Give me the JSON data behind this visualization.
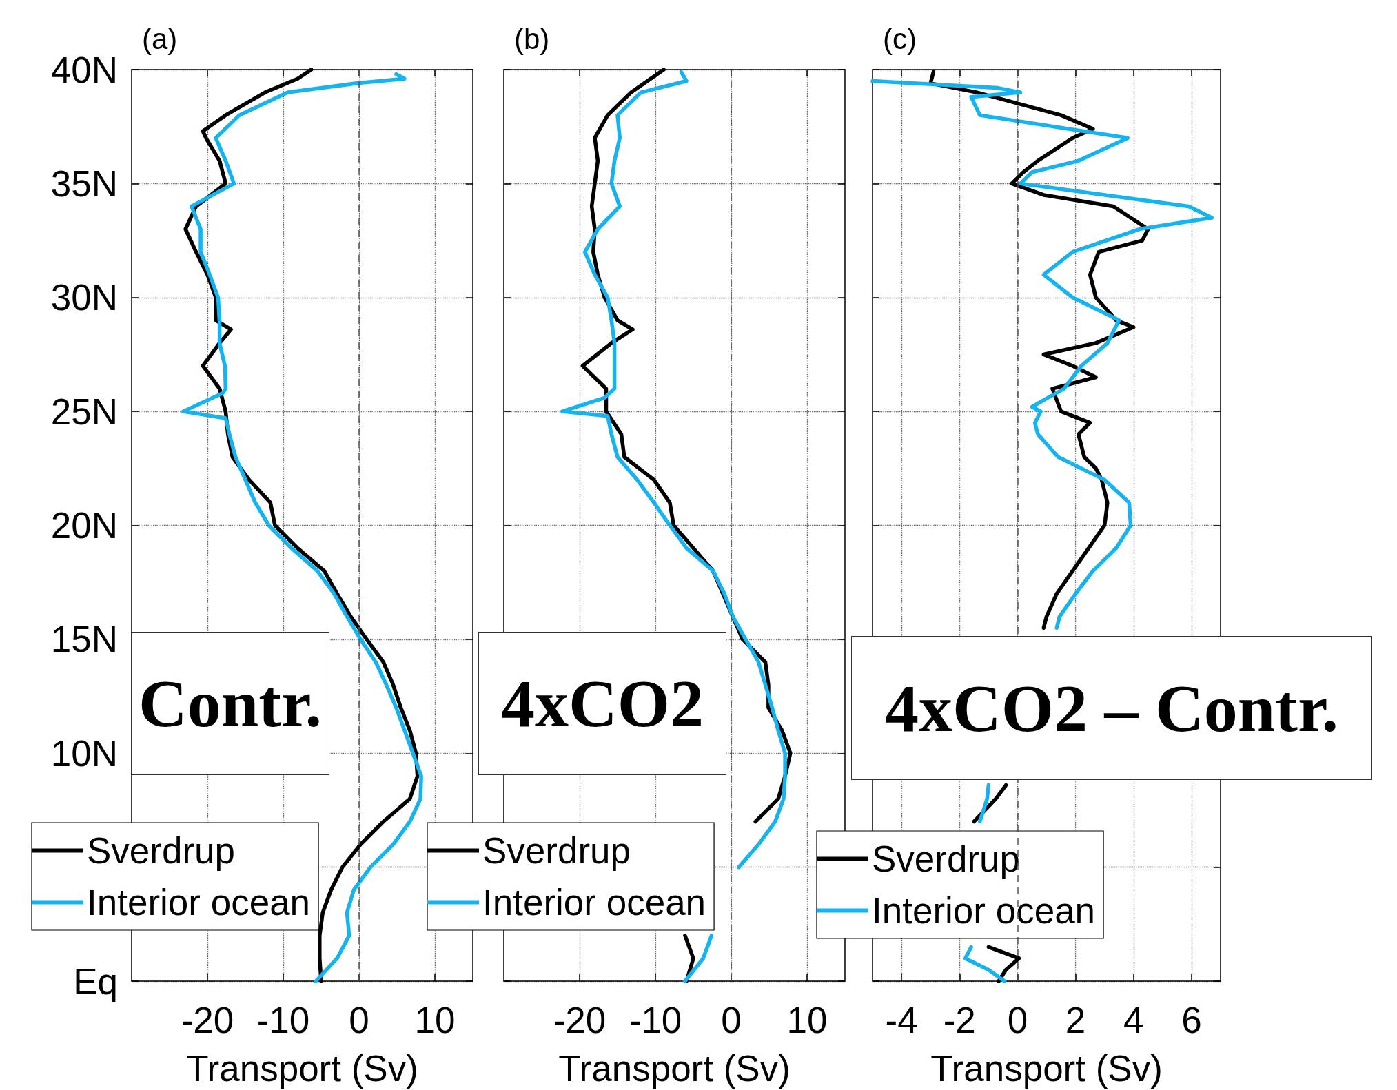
{
  "chart_data": [
    {
      "type": "line",
      "title": "(a)",
      "xlabel": "Transport (Sv)",
      "annotations": [
        "Contr."
      ],
      "xlim": [
        -30,
        15
      ],
      "xticks": [
        -20,
        -10,
        0,
        10
      ],
      "ylim": [
        0,
        40
      ],
      "yticks": [
        {
          "value": 0,
          "label": "Eq"
        },
        {
          "value": 5,
          "label": null
        },
        {
          "value": 10,
          "label": "10N"
        },
        {
          "value": 15,
          "label": "15N"
        },
        {
          "value": 20,
          "label": "20N"
        },
        {
          "value": 25,
          "label": "25N"
        },
        {
          "value": 30,
          "label": "30N"
        },
        {
          "value": 35,
          "label": "35N"
        },
        {
          "value": 40,
          "label": "40N"
        }
      ],
      "grid": true,
      "legend": "bottom left",
      "marker": "none",
      "ref_lines": [
        {
          "axis": "x",
          "value": 0,
          "color": "#555555",
          "line_style": "dashed"
        }
      ],
      "series": [
        {
          "name": "Sverdrup",
          "color": "#000000",
          "x": [
            -5.0,
            -5.2,
            -5.2,
            -4.8,
            -3.7,
            -2.2,
            0.2,
            3.2,
            6.7,
            7.7,
            7.5,
            6.7,
            5.5,
            4.5,
            3.2,
            1.0,
            -1.1,
            -2.9,
            -4.6,
            -8.1,
            -11.1,
            -11.7,
            -14.5,
            -16.7,
            -17.3,
            -17.6,
            -18.4,
            -20.6,
            -18.4,
            -16.9,
            -18.9,
            -18.9,
            -20,
            -21.5,
            -22.9,
            -21.5,
            -17.6,
            -18.4,
            -20.2,
            -20.6,
            -17.6,
            -12.4,
            -8.1,
            -6.3
          ],
          "values": [
            0,
            1,
            2,
            3,
            4,
            5,
            6,
            7,
            8,
            9,
            10,
            11,
            12,
            13,
            14,
            15,
            16,
            17,
            18,
            19,
            20,
            21,
            22,
            23,
            24,
            25,
            26,
            27,
            28,
            28.6,
            29,
            30,
            31,
            32,
            33,
            34,
            35,
            36,
            37,
            37.3,
            38,
            39,
            39.6,
            40
          ]
        },
        {
          "name": "Interior ocean",
          "color": "#15b3ef",
          "x": [
            -5.7,
            -2.9,
            -1.3,
            -1.6,
            -0.7,
            1.5,
            4.5,
            6.7,
            8.1,
            8.2,
            7.1,
            6.0,
            4.9,
            3.6,
            2.2,
            0.2,
            -1.6,
            -3.3,
            -5.5,
            -8.9,
            -11.9,
            -13.7,
            -15,
            -16.3,
            -17.1,
            -17.6,
            -23.2,
            -18,
            -17.6,
            -17.7,
            -18.4,
            -18.4,
            -18.6,
            -19.7,
            -20.9,
            -20.9,
            -22.1,
            -16.5,
            -17.6,
            -18.9,
            -15.8,
            -9.4,
            -0.3,
            6.0,
            4.9
          ],
          "values": [
            0,
            1,
            2,
            3,
            4,
            5,
            6,
            7,
            8,
            9,
            10,
            11,
            12,
            13,
            14,
            15,
            16,
            17,
            18,
            19,
            20,
            21,
            22,
            23,
            24,
            24.7,
            25,
            25.8,
            26,
            27,
            28,
            29,
            30,
            31,
            32,
            33,
            34,
            35,
            36,
            37,
            38,
            39,
            39.4,
            39.6,
            39.8
          ]
        }
      ]
    },
    {
      "type": "line",
      "title": "(b)",
      "xlabel": "Transport (Sv)",
      "annotations": [
        "4xCO2"
      ],
      "xlim": [
        -30,
        15
      ],
      "xticks": [
        -20,
        -10,
        0,
        10
      ],
      "ylim": [
        0,
        40
      ],
      "yticks": [
        0,
        5,
        10,
        15,
        20,
        25,
        30,
        35,
        40
      ],
      "tick_labels": "x",
      "grid": true,
      "legend": "bottom left",
      "marker": "none",
      "ref_lines": [
        {
          "axis": "x",
          "value": 0,
          "color": "#555555",
          "line_style": "dashed"
        }
      ],
      "series": [
        {
          "name": "Sverdrup",
          "color": "#000000",
          "x": [
            -5.9,
            -5.0,
            -6.1,
            null,
            3.2,
            6.2,
            7.1,
            7.8,
            6.7,
            4.9,
            4.9,
            4.5,
            1.5,
            0.2,
            -1.1,
            -2.4,
            -5.0,
            -7.6,
            -8.1,
            -10.2,
            -14.1,
            -14.5,
            -16.5,
            -16.5,
            -19.6,
            -15.8,
            -13,
            -15,
            -16.7,
            -17.6,
            -18.2,
            -18,
            -18.4,
            -18,
            -17.6,
            -18,
            -16.3,
            -13.2,
            -8.9
          ],
          "values": [
            0,
            1,
            2,
            null,
            7,
            8,
            9,
            10,
            11,
            12,
            13,
            14,
            15,
            16,
            17,
            18,
            19,
            20,
            21,
            22,
            23,
            24,
            25,
            26,
            27,
            28,
            28.6,
            29,
            30,
            31,
            32,
            33,
            34,
            35,
            36,
            37,
            38,
            39,
            40
          ]
        },
        {
          "name": "Interior ocean",
          "color": "#15b3ef",
          "x": [
            -6.1,
            -3.7,
            -2.6,
            null,
            1.0,
            3.6,
            5.8,
            6.9,
            7.1,
            7.1,
            6.2,
            5.4,
            4.5,
            3.6,
            1.9,
            0.2,
            -0.9,
            -2.4,
            -5.9,
            -8.1,
            -10.2,
            -12.4,
            -15,
            -15.8,
            -16.3,
            -22.3,
            -16.7,
            -15.4,
            -15.4,
            -15.4,
            -15.8,
            -16.3,
            -18,
            -19.3,
            -17.6,
            -14.7,
            -15.8,
            -15.4,
            -14.7,
            -15,
            -11.9,
            -5.9,
            -6.6
          ],
          "values": [
            0,
            1,
            2,
            null,
            5,
            6,
            7,
            8,
            9,
            10,
            11,
            12,
            13,
            14,
            15,
            16,
            17,
            18,
            19,
            20,
            21,
            22,
            23,
            24,
            24.8,
            25,
            25.6,
            26,
            27,
            28,
            29,
            30,
            31,
            32,
            33,
            34,
            35,
            36,
            37,
            38,
            39,
            39.5,
            39.9
          ]
        }
      ]
    },
    {
      "type": "line",
      "title": "(c)",
      "xlabel": "Transport (Sv)",
      "annotations": [
        "4xCO2 – Contr."
      ],
      "xlim": [
        -5,
        7
      ],
      "xticks": [
        -4,
        -2,
        0,
        2,
        4,
        6
      ],
      "ylim": [
        0,
        40
      ],
      "yticks": [
        0,
        5,
        10,
        15,
        20,
        25,
        30,
        35,
        40
      ],
      "tick_labels": "x",
      "grid": true,
      "legend": "bottom left",
      "marker": "none",
      "ref_lines": [
        {
          "axis": "x",
          "value": 0,
          "color": "#555555",
          "line_style": "dashed"
        }
      ],
      "series": [
        {
          "name": "Sverdrup",
          "color": "#000000",
          "x": [
            -0.65,
            -0.4,
            0.05,
            -1.0,
            null,
            -1.5,
            -0.75,
            -0.4,
            null,
            0.9,
            1.0,
            1.35,
            1.9,
            2.45,
            3.0,
            3.1,
            2.9,
            2.7,
            2.3,
            2.1,
            2.5,
            1.5,
            1.2,
            2.7,
            1.9,
            0.9,
            2.7,
            4.0,
            3.4,
            2.7,
            2.5,
            2.8,
            4.3,
            4.5,
            3.3,
            0.9,
            -0.2,
            0.2,
            0.7,
            1.9,
            2.6,
            1.5,
            -1.4,
            -3.0,
            -2.9
          ],
          "values": [
            0,
            0.5,
            1,
            1.5,
            null,
            7,
            8,
            8.6,
            null,
            15.5,
            16,
            17,
            18,
            19,
            20,
            21,
            22,
            22.5,
            23,
            24,
            24.5,
            25,
            26,
            26.5,
            27,
            27.5,
            28,
            28.7,
            29,
            30,
            31,
            32,
            32.5,
            33,
            34,
            34.5,
            35,
            35.5,
            36,
            37,
            37.4,
            38,
            39,
            39.4,
            39.9
          ]
        },
        {
          "name": "Interior ocean",
          "color": "#15b3ef",
          "x": [
            -0.45,
            -1.0,
            -1.8,
            -1.6,
            null,
            -1.3,
            -1.05,
            -1.0,
            null,
            1.35,
            1.45,
            2.0,
            2.6,
            3.4,
            3.9,
            3.85,
            3.0,
            1.4,
            0.7,
            0.6,
            0.8,
            0.5,
            1.6,
            2.2,
            3.1,
            3.5,
            1.9,
            0.9,
            1.9,
            4.2,
            6.7,
            5.9,
            0.1,
            0.5,
            2.1,
            3.8,
            -1.3,
            -1.6,
            0.1,
            -0.7,
            -5.0
          ],
          "values": [
            0,
            0.5,
            1,
            1.5,
            null,
            7,
            8,
            8.6,
            null,
            15.5,
            16,
            17,
            18,
            19,
            20,
            21,
            22,
            23,
            24,
            24.5,
            25,
            25.2,
            26,
            27,
            28,
            29,
            30,
            31,
            32,
            33,
            33.5,
            34,
            35,
            35.5,
            36,
            37,
            38,
            38.8,
            39,
            39.2,
            39.5
          ]
        }
      ]
    }
  ]
}
